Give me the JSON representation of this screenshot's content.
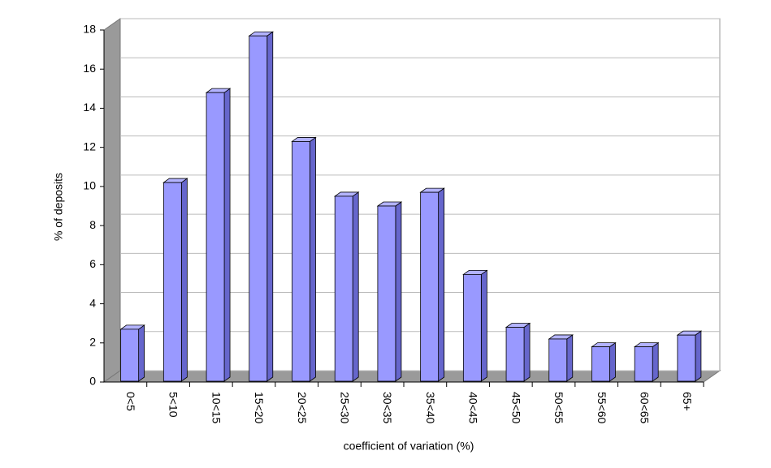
{
  "chart_data": {
    "type": "bar",
    "x_label": "coefficient of variation (%)",
    "y_label": "% of deposits",
    "categories": [
      "0<5",
      "5<10",
      "10<15",
      "15<20",
      "20<25",
      "25<30",
      "30<35",
      "35<40",
      "40<45",
      "45<50",
      "50<55",
      "55<60",
      "60<65",
      "65+"
    ],
    "values": [
      2.7,
      10.2,
      14.8,
      17.7,
      12.3,
      9.5,
      9.0,
      9.7,
      5.5,
      2.8,
      2.2,
      1.8,
      1.8,
      2.4
    ],
    "color": "#9999ff",
    "ylim": [
      0,
      18
    ],
    "yticks": [
      0,
      2,
      4,
      6,
      8,
      10,
      12,
      14,
      16,
      18
    ],
    "grid": true
  }
}
